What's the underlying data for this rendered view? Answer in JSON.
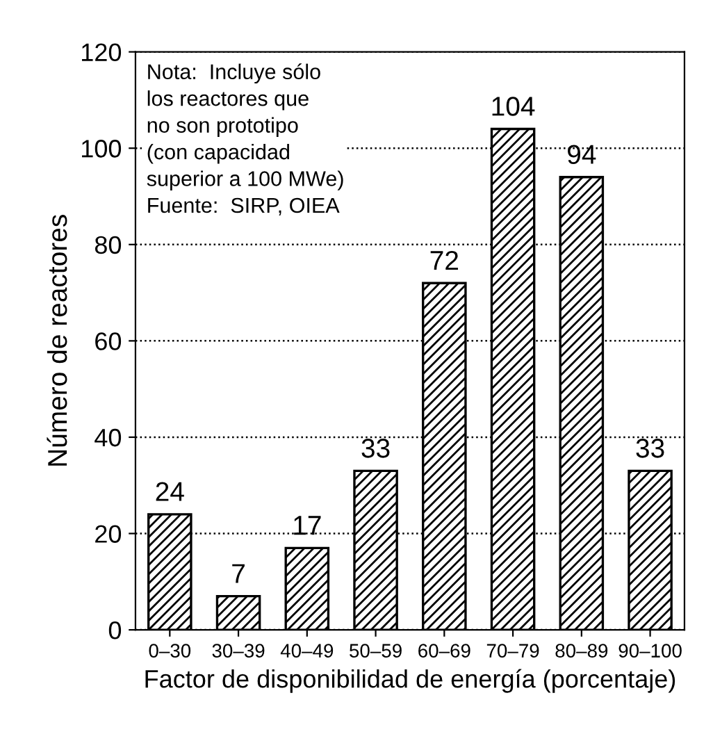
{
  "chart_data": {
    "type": "bar",
    "xlabel": "Factor de disponibilidad de energía (porcentaje)",
    "ylabel": "Número de reactores",
    "categories": [
      "0–30",
      "30–39",
      "40–49",
      "50–59",
      "60–69",
      "70–79",
      "80–89",
      "90–100"
    ],
    "values": [
      24,
      7,
      17,
      33,
      72,
      104,
      94,
      33
    ],
    "color": "#000000",
    "ylim": [
      0,
      120
    ],
    "yticks": [
      0,
      20,
      40,
      60,
      80,
      100,
      120
    ],
    "grid": "y",
    "line_style": "dotted",
    "data_labels": true,
    "legend": false,
    "annotations": [
      "Nota:  Incluye sólo\nlos reactores que\nno son prototipo\n(con capacidad\nsuperior a 100 MWe)\nFuente:  SIRP, OIEA"
    ]
  }
}
